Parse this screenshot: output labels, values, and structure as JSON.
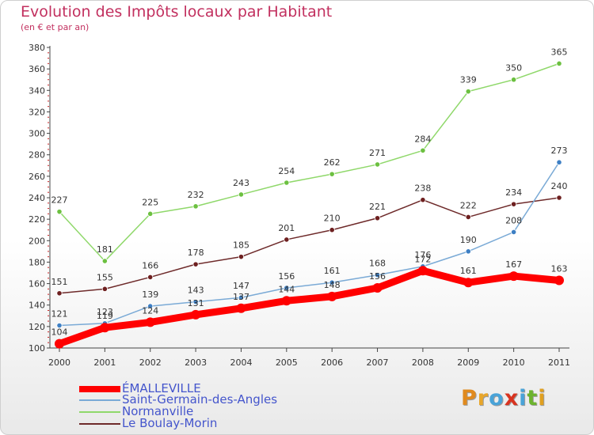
{
  "header": {
    "title": "Evolution des Impôts locaux par Habitant",
    "subtitle": "(en € et par an)"
  },
  "logo": {
    "letters": [
      "P",
      "r",
      "o",
      "x",
      "i",
      "t",
      "i"
    ],
    "colors": [
      "#e08a1e",
      "#e8a62a",
      "#49a3d8",
      "#d8331f",
      "#49a3d8",
      "#6cb32e",
      "#e0a020"
    ]
  },
  "chart_data": {
    "type": "line",
    "x": [
      "2000",
      "2001",
      "2002",
      "2003",
      "2004",
      "2005",
      "2006",
      "2007",
      "2008",
      "2009",
      "2010",
      "2011"
    ],
    "ylim": [
      100,
      380
    ],
    "yticks": [
      "100",
      "120",
      "140",
      "160",
      "180",
      "200",
      "220",
      "240",
      "260",
      "280",
      "300",
      "320",
      "340",
      "360",
      "380"
    ],
    "grid": false,
    "legend_position": "bottom-left",
    "series": [
      {
        "name": "Normanville",
        "color": "#8fd86a",
        "marker": "#6cc040",
        "width": "thin",
        "values": [
          227,
          181,
          225,
          232,
          243,
          254,
          262,
          271,
          284,
          339,
          350,
          365
        ],
        "labels": [
          "227",
          "181",
          "225",
          "232",
          "243",
          "254",
          "262",
          "271",
          "284",
          "339",
          "350",
          "365"
        ]
      },
      {
        "name": "Le Boulay-Morin",
        "color": "#6e2a2a",
        "marker": "#6e2020",
        "width": "thin",
        "values": [
          151,
          155,
          166,
          178,
          185,
          201,
          210,
          221,
          238,
          222,
          234,
          240
        ],
        "labels": [
          "151",
          "155",
          "166",
          "178",
          "185",
          "201",
          "210",
          "221",
          "238",
          "222",
          "234",
          "240"
        ]
      },
      {
        "name": "Saint-Germain-des-Angles",
        "color": "#7aaad6",
        "marker": "#3d7fc4",
        "width": "thin",
        "values": [
          121,
          123,
          139,
          143,
          147,
          156,
          161,
          168,
          176,
          190,
          208,
          273
        ],
        "labels": [
          "121",
          "123",
          "139",
          "143",
          "147",
          "156",
          "161",
          "168",
          "176",
          "190",
          "208",
          "273"
        ]
      },
      {
        "name": "ÉMALLEVILLE",
        "color": "#ff0000",
        "marker": "#ff0000",
        "width": "thick",
        "values": [
          104,
          119,
          124,
          131,
          137,
          144,
          148,
          156,
          172,
          161,
          167,
          163
        ],
        "labels": [
          "104",
          "119",
          "124",
          "131",
          "137",
          "144",
          "148",
          "156",
          "172",
          "161",
          "167",
          "163"
        ]
      }
    ],
    "legend": [
      "ÉMALLEVILLE",
      "Saint-Germain-des-Angles",
      "Normanville",
      "Le Boulay-Morin"
    ]
  }
}
